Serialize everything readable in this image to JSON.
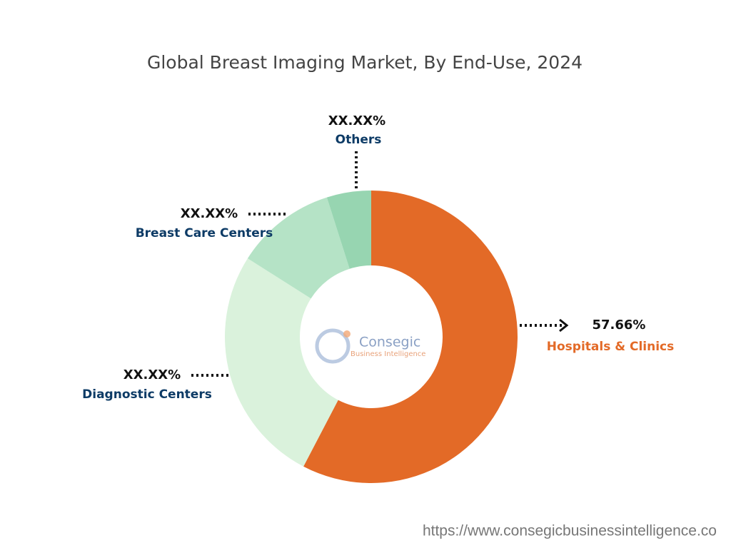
{
  "chart_data": {
    "type": "donut",
    "title": "Global Breast Imaging Market, By End-Use, 2024",
    "categories": [
      "Hospitals & Clinics",
      "Diagnostic Centers",
      "Breast Care Centers",
      "Others"
    ],
    "values": [
      57.66,
      26.34,
      11.1,
      4.9
    ],
    "value_labels": [
      "57.66%",
      "XX.XX%",
      "XX.XX%",
      "XX.XX%"
    ],
    "colors": [
      "#e36a27",
      "#daf2dc",
      "#b5e3c6",
      "#97d5b1"
    ]
  },
  "logo": {
    "name": "Consegic",
    "tagline": "Business Intelligence"
  },
  "footer_url": "https://www.consegicbusinessintelligence.co"
}
